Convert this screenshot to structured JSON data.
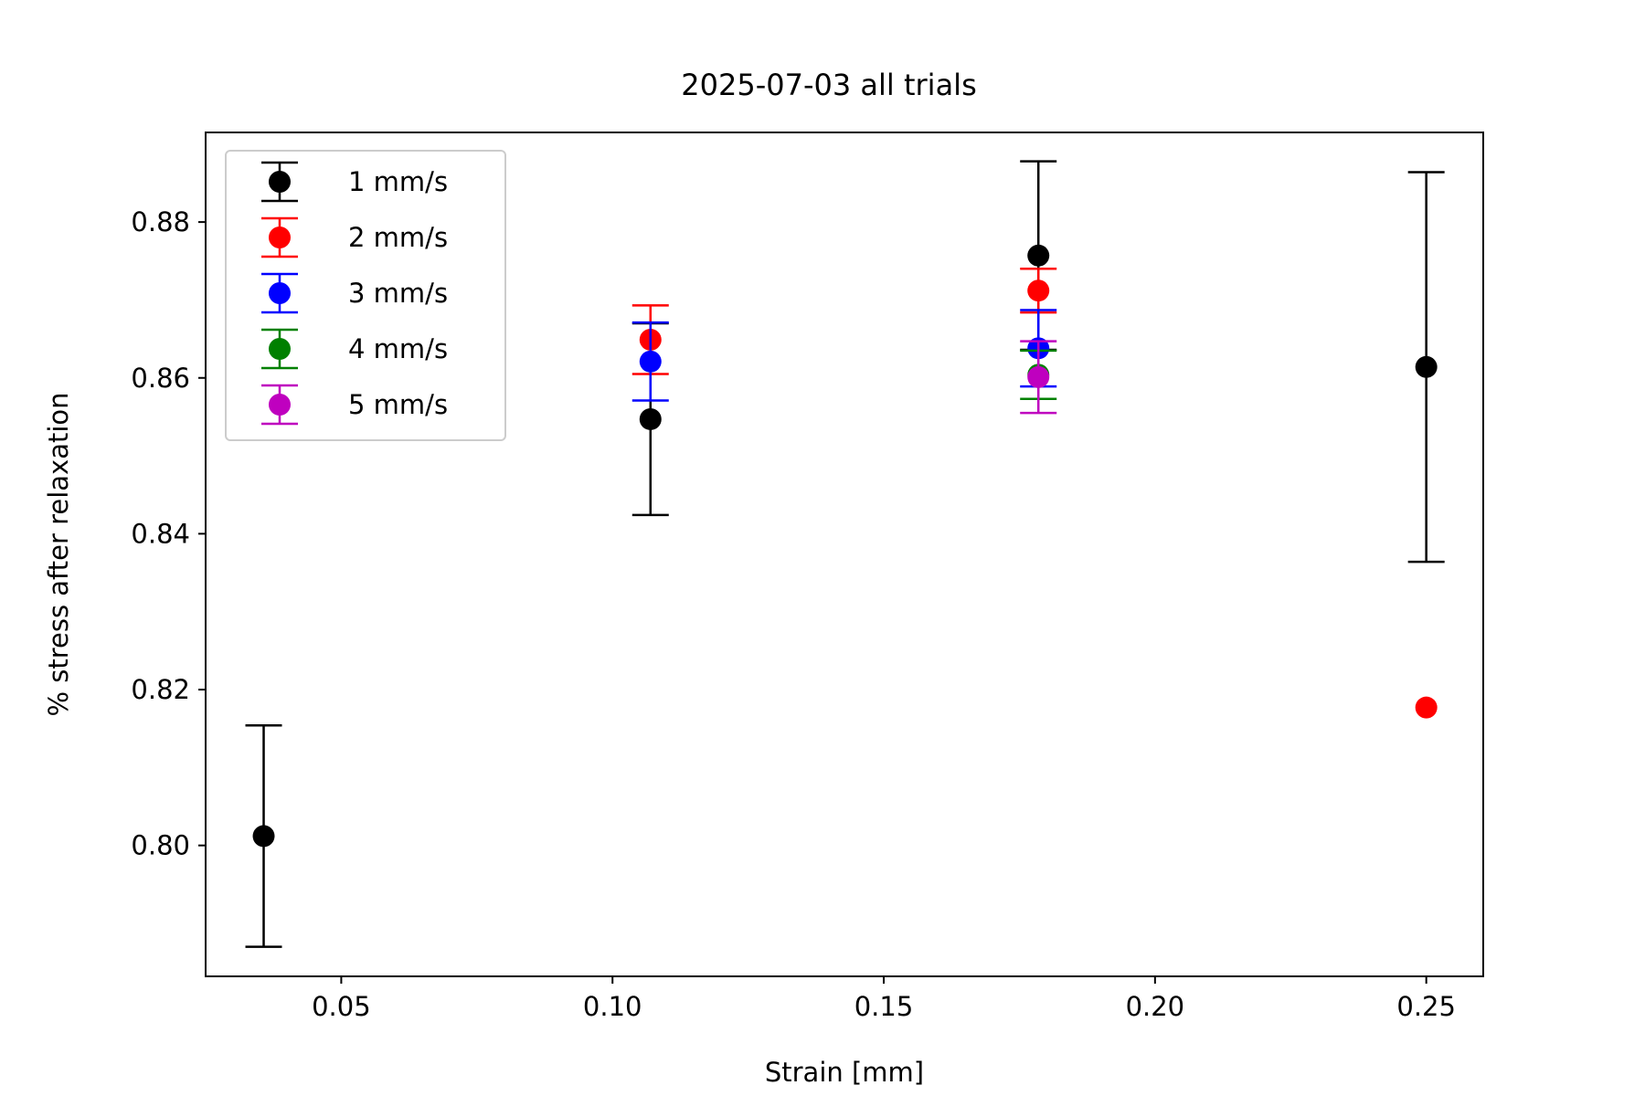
{
  "chart_data": {
    "type": "scatter",
    "title": "2025-07-03 all trials",
    "xlabel": "Strain [mm]",
    "ylabel": "% stress after relaxation",
    "xlim": [
      0.025,
      0.2605
    ],
    "ylim": [
      0.7832,
      0.8915
    ],
    "xticks": [
      "0.05",
      "0.10",
      "0.15",
      "0.20",
      "0.25"
    ],
    "yticks": [
      "0.80",
      "0.82",
      "0.84",
      "0.86",
      "0.88"
    ],
    "grid": false,
    "legend_position": "top-left",
    "series": [
      {
        "name": "1 mm/s",
        "color": "#000000",
        "points": [
          {
            "x": 0.0357,
            "y": 0.8012,
            "err": 0.0142
          },
          {
            "x": 0.107,
            "y": 0.8547,
            "err": 0.0123
          },
          {
            "x": 0.1785,
            "y": 0.8757,
            "err": 0.0121
          },
          {
            "x": 0.25,
            "y": 0.8614,
            "err": 0.025
          }
        ]
      },
      {
        "name": "2 mm/s",
        "color": "#ff0000",
        "points": [
          {
            "x": 0.107,
            "y": 0.8649,
            "err": 0.0044
          },
          {
            "x": 0.1785,
            "y": 0.8712,
            "err": 0.0028
          },
          {
            "x": 0.25,
            "y": 0.8177,
            "err": 0
          }
        ]
      },
      {
        "name": "3 mm/s",
        "color": "#0000ff",
        "points": [
          {
            "x": 0.107,
            "y": 0.8621,
            "err": 0.005
          },
          {
            "x": 0.1785,
            "y": 0.8638,
            "err": 0.0049
          }
        ]
      },
      {
        "name": "4 mm/s",
        "color": "#008000",
        "points": [
          {
            "x": 0.1785,
            "y": 0.8604,
            "err": 0.0031
          }
        ]
      },
      {
        "name": "5 mm/s",
        "color": "#bf00bf",
        "points": [
          {
            "x": 0.1785,
            "y": 0.8601,
            "err": 0.0046
          }
        ]
      }
    ]
  }
}
